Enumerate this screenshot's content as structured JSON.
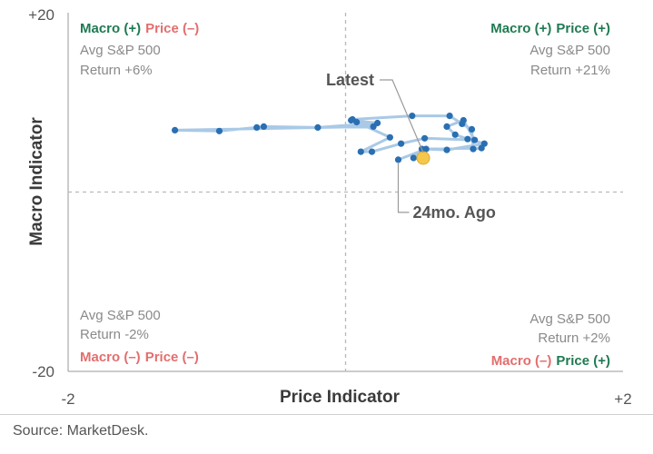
{
  "chart_data": {
    "type": "scatter",
    "xlabel": "Price Indicator",
    "ylabel": "Macro Indicator",
    "xlim": [
      -2,
      2
    ],
    "ylim": [
      -20,
      20
    ],
    "x_ticks": [
      "-2",
      "+2"
    ],
    "y_ticks": [
      "+20",
      "-20"
    ],
    "grid": false,
    "reference_lines": {
      "x": 0,
      "y": 0,
      "style": "dashed"
    },
    "quadrants": {
      "top_left": {
        "macro": "Macro (+)",
        "price": "Price (–)",
        "line1": "Avg S&P 500",
        "line2": "Return +6%"
      },
      "top_right": {
        "macro": "Macro (+)",
        "price": "Price (+)",
        "line1": "Avg S&P 500",
        "line2": "Return +21%"
      },
      "bottom_left": {
        "macro": "Macro (–)",
        "price": "Price (–)",
        "line1": "Avg S&P 500",
        "line2": "Return -2%"
      },
      "bottom_right": {
        "macro": "Macro (–)",
        "price": "Price (+)",
        "line1": "Avg S&P 500",
        "line2": "Return +2%"
      }
    },
    "path_order": "oldest to latest",
    "series": [
      {
        "points": [
          [
            0.38,
            3.6
          ],
          [
            0.58,
            4.8
          ],
          [
            0.73,
            4.7
          ],
          [
            1.0,
            5.4
          ],
          [
            0.88,
            5.9
          ],
          [
            0.79,
            6.4
          ],
          [
            0.73,
            7.3
          ],
          [
            0.85,
            8.0
          ],
          [
            0.93,
            5.8
          ],
          [
            0.57,
            6.0
          ],
          [
            0.4,
            5.4
          ],
          [
            0.19,
            4.5
          ],
          [
            0.11,
            4.5
          ],
          [
            0.32,
            6.1
          ],
          [
            0.08,
            7.8
          ],
          [
            0.04,
            8.0
          ],
          [
            0.23,
            7.7
          ],
          [
            -0.2,
            7.2
          ],
          [
            -0.59,
            7.3
          ],
          [
            -0.64,
            7.2
          ],
          [
            -0.91,
            6.8
          ],
          [
            -1.23,
            6.9
          ],
          [
            0.2,
            7.3
          ],
          [
            0.05,
            8.1
          ],
          [
            0.48,
            8.5
          ],
          [
            0.75,
            8.5
          ],
          [
            0.84,
            7.6
          ],
          [
            0.91,
            7.0
          ],
          [
            0.92,
            4.8
          ],
          [
            0.98,
            4.9
          ],
          [
            0.55,
            4.8
          ],
          [
            0.49,
            3.8
          ],
          [
            0.56,
            3.8
          ]
        ]
      }
    ],
    "annotations": [
      {
        "text": "Latest",
        "x": 0.56,
        "y": 3.8
      },
      {
        "text": "24mo. Ago",
        "x": 0.38,
        "y": 3.6
      }
    ],
    "colors": {
      "line": "#a9c9e6",
      "marker": "#2a6fb2",
      "latest_marker": "#f5c84b",
      "positive": "#1f7a52",
      "negative": "#e36e6e",
      "reference": "#b8b8b8"
    }
  },
  "source": "Source: MarketDesk."
}
